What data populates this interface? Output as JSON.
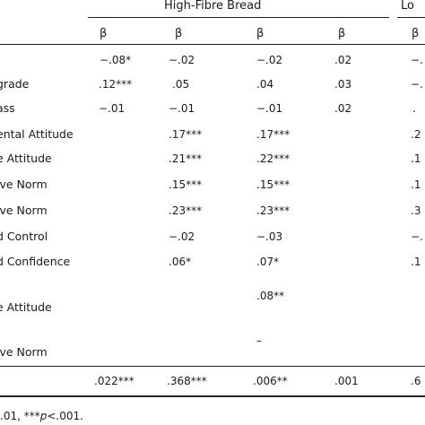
{
  "table": {
    "groups": [
      {
        "label": "High-Fibre Bread"
      },
      {
        "label": "Lo"
      }
    ],
    "header_symbols": [
      "β",
      "β",
      "β",
      "β",
      "β"
    ],
    "rows": [
      {
        "label": "",
        "cells": [
          "−.08*",
          "−.02",
          "−.02",
          ".02",
          "−."
        ]
      },
      {
        "label": "grade",
        "cells": [
          ".12***",
          ".05",
          ".04",
          ".03",
          "−."
        ]
      },
      {
        "label": "ass",
        "cells": [
          "−.01",
          "−.01",
          "−.01",
          ".02",
          "."
        ]
      },
      {
        "label": "ental Attitude",
        "cells": [
          "",
          ".17***",
          ".17***",
          "",
          ".2"
        ]
      },
      {
        "label": "e Attitude",
        "cells": [
          "",
          ".21***",
          ".22***",
          "",
          ".1"
        ]
      },
      {
        "label": "ive Norm",
        "cells": [
          "",
          ".15***",
          ".15***",
          "",
          ".1"
        ]
      },
      {
        "label": "ive Norm",
        "cells": [
          "",
          ".23***",
          ".23***",
          "",
          ".3"
        ]
      },
      {
        "label": "d Control",
        "cells": [
          "",
          "−.02",
          "−.03",
          "",
          "−."
        ]
      },
      {
        "label": "d Confidence",
        "cells": [
          "",
          ".06*",
          ".07*",
          "",
          ".1"
        ]
      },
      {
        "label": "",
        "cells": [
          "",
          "",
          ".08**",
          "",
          ""
        ]
      },
      {
        "label": "e Attitude",
        "cells": [
          "",
          "",
          "",
          "",
          ""
        ]
      },
      {
        "label": "",
        "cells": [
          "",
          "",
          "–",
          "",
          ""
        ]
      },
      {
        "label": "ive Norm",
        "cells": [
          "",
          "",
          "",
          "",
          ""
        ]
      },
      {
        "label": "",
        "cells": [
          ".022***",
          ".368***",
          ".006**",
          ".001",
          ".6"
        ]
      }
    ],
    "footnote": {
      "prefix": ".01, ***",
      "p_symbol": "p",
      "suffix": "<.001."
    }
  }
}
